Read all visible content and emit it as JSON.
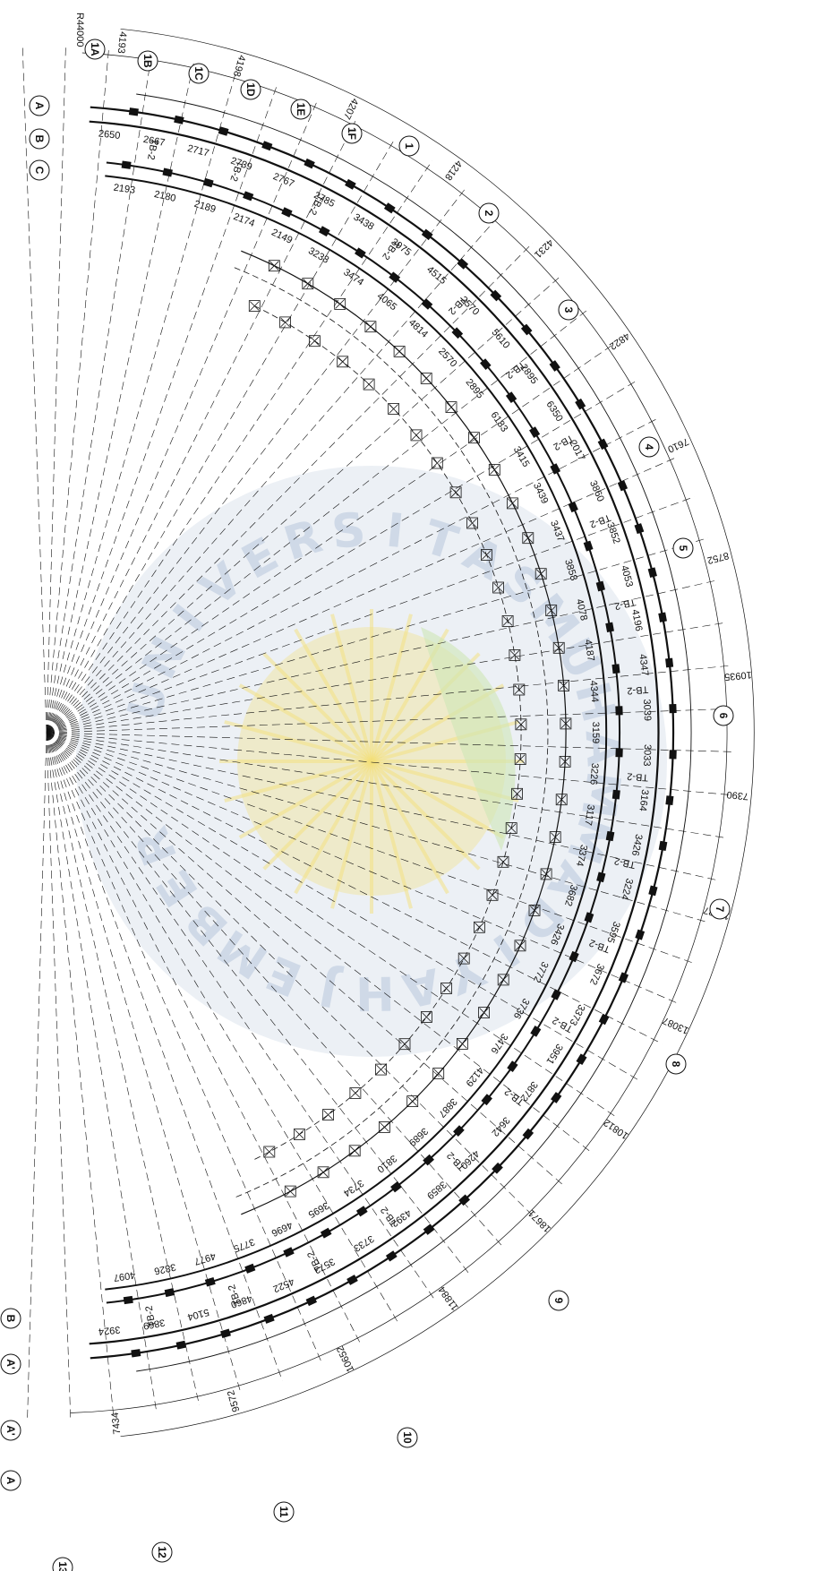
{
  "radius_label": "R44000",
  "grid_labels_top": [
    "1A",
    "1B",
    "1C",
    "1D",
    "1E",
    "1F"
  ],
  "grid_labels_rows_top": [
    "A",
    "B",
    "C"
  ],
  "grid_labels_main": [
    "1",
    "2",
    "3",
    "4",
    "5",
    "6",
    "7",
    "8",
    "9",
    "10",
    "11",
    "12",
    "13"
  ],
  "grid_labels_rows_bottom": [
    "B",
    "A'",
    "A'",
    "A"
  ],
  "outer_dims": [
    "4193",
    "4198",
    "4207",
    "4218",
    "4231",
    "4822",
    "7610",
    "8752",
    "10935",
    "7390",
    "11487",
    "13087",
    "10812",
    "18671",
    "11884",
    "10652",
    "9572",
    "7434"
  ],
  "ring_dims": [
    "2650",
    "2193",
    "2667",
    "2180",
    "2717",
    "2189",
    "2739",
    "2174",
    "2767",
    "2149",
    "2785",
    "3238",
    "3438",
    "3474",
    "3975",
    "4065",
    "4515",
    "4814",
    "2570",
    "2570",
    "5610",
    "2895",
    "2895",
    "6183",
    "6350",
    "3415",
    "2017",
    "3439",
    "3860",
    "3437",
    "3852",
    "3858",
    "4053",
    "4078",
    "4196",
    "4187",
    "4347",
    "4344",
    "3039",
    "3159",
    "3033",
    "3226",
    "3164",
    "3117",
    "3426",
    "3374",
    "3224",
    "3682",
    "3595",
    "3426",
    "3672",
    "3772",
    "3373",
    "3736",
    "3951",
    "3476",
    "3872",
    "4129",
    "3642",
    "3887",
    "4260",
    "3689",
    "3859",
    "3810",
    "4392",
    "3734",
    "3733",
    "3695",
    "3573",
    "4696",
    "4522",
    "3775",
    "4860",
    "4977",
    "5104",
    "3826",
    "3869",
    "4097",
    "3924"
  ],
  "beam_label": "TB-2",
  "watermark": [
    "U",
    "N",
    "I",
    "V",
    "E",
    "R",
    "S",
    "I",
    "T",
    "A",
    "S",
    "M",
    "U",
    "H",
    "A",
    "M",
    "M",
    "A",
    "D",
    "I",
    "Y",
    "A",
    "H",
    "J",
    "E",
    "M",
    "B",
    "E",
    "R"
  ],
  "colors": {
    "line": "#111111",
    "watermark_blue": "#c8d3e3",
    "watermark_gold": "#f3e07a",
    "watermark_green": "#cfe6b5"
  }
}
